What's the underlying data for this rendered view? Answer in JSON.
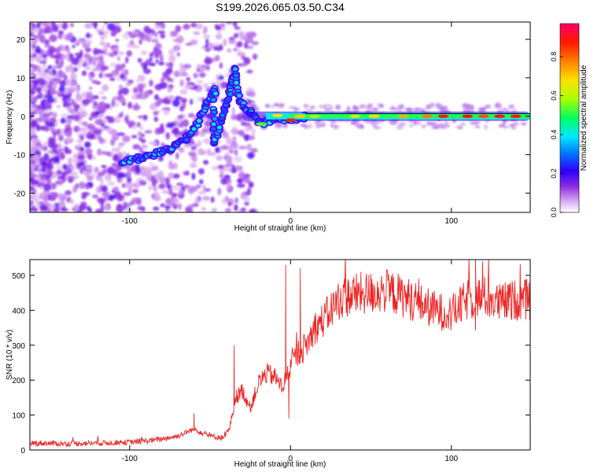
{
  "title": "S199.2026.065.03.50.C34",
  "chart_data": [
    {
      "type": "heatmap",
      "id": "spectrogram",
      "xlabel": "Height of straight line (km)",
      "ylabel": "Frequency (Hz)",
      "xlim": [
        -162,
        149
      ],
      "ylim": [
        -25,
        24.5
      ],
      "xticks": [
        -100,
        0,
        100
      ],
      "yticks": [
        -20,
        -10,
        0,
        10,
        20
      ],
      "colorbar": {
        "label": "Normalized spectral amplitude",
        "range": [
          0,
          0.97
        ],
        "ticks": [
          0.0,
          0.2,
          0.4,
          0.6,
          0.8
        ]
      },
      "ridge": [
        {
          "x": -105,
          "y": -12
        },
        {
          "x": -95,
          "y": -11
        },
        {
          "x": -85,
          "y": -10
        },
        {
          "x": -75,
          "y": -8.5
        },
        {
          "x": -65,
          "y": -6
        },
        {
          "x": -58,
          "y": -2
        },
        {
          "x": -52,
          "y": 3
        },
        {
          "x": -47,
          "y": 7
        },
        {
          "x": -48,
          "y": -7
        },
        {
          "x": -42,
          "y": 0
        },
        {
          "x": -38,
          "y": 6
        },
        {
          "x": -34,
          "y": 12
        },
        {
          "x": -32,
          "y": 4
        },
        {
          "x": -25,
          "y": 1
        },
        {
          "x": -18,
          "y": -2
        },
        {
          "x": -10,
          "y": -0.5
        },
        {
          "x": 0,
          "y": -1
        },
        {
          "x": 10,
          "y": 0
        },
        {
          "x": 30,
          "y": 0
        },
        {
          "x": 60,
          "y": 0
        },
        {
          "x": 90,
          "y": 0
        },
        {
          "x": 120,
          "y": 0
        },
        {
          "x": 149,
          "y": 0
        }
      ]
    },
    {
      "type": "line",
      "id": "snr",
      "xlabel": "Height of straight line (km)",
      "ylabel": "SNR (10 * v/v)",
      "xlim": [
        -162,
        149
      ],
      "ylim": [
        0,
        545
      ],
      "xticks": [
        -100,
        0,
        100
      ],
      "yticks": [
        0,
        100,
        200,
        300,
        400,
        500
      ],
      "color": "#ee2222",
      "series": [
        {
          "name": "SNR",
          "x": [
            -162,
            -140,
            -120,
            -100,
            -85,
            -70,
            -60,
            -50,
            -42,
            -38,
            -34,
            -30,
            -25,
            -20,
            -15,
            -10,
            -5,
            0,
            5,
            10,
            15,
            20,
            25,
            30,
            35,
            40,
            50,
            60,
            70,
            80,
            90,
            100,
            110,
            120,
            130,
            140,
            149
          ],
          "values": [
            20,
            18,
            20,
            22,
            28,
            40,
            60,
            40,
            35,
            60,
            150,
            170,
            120,
            190,
            220,
            210,
            180,
            240,
            280,
            300,
            350,
            370,
            400,
            430,
            440,
            445,
            450,
            455,
            440,
            420,
            400,
            390,
            430,
            440,
            420,
            430,
            430
          ]
        }
      ]
    }
  ]
}
